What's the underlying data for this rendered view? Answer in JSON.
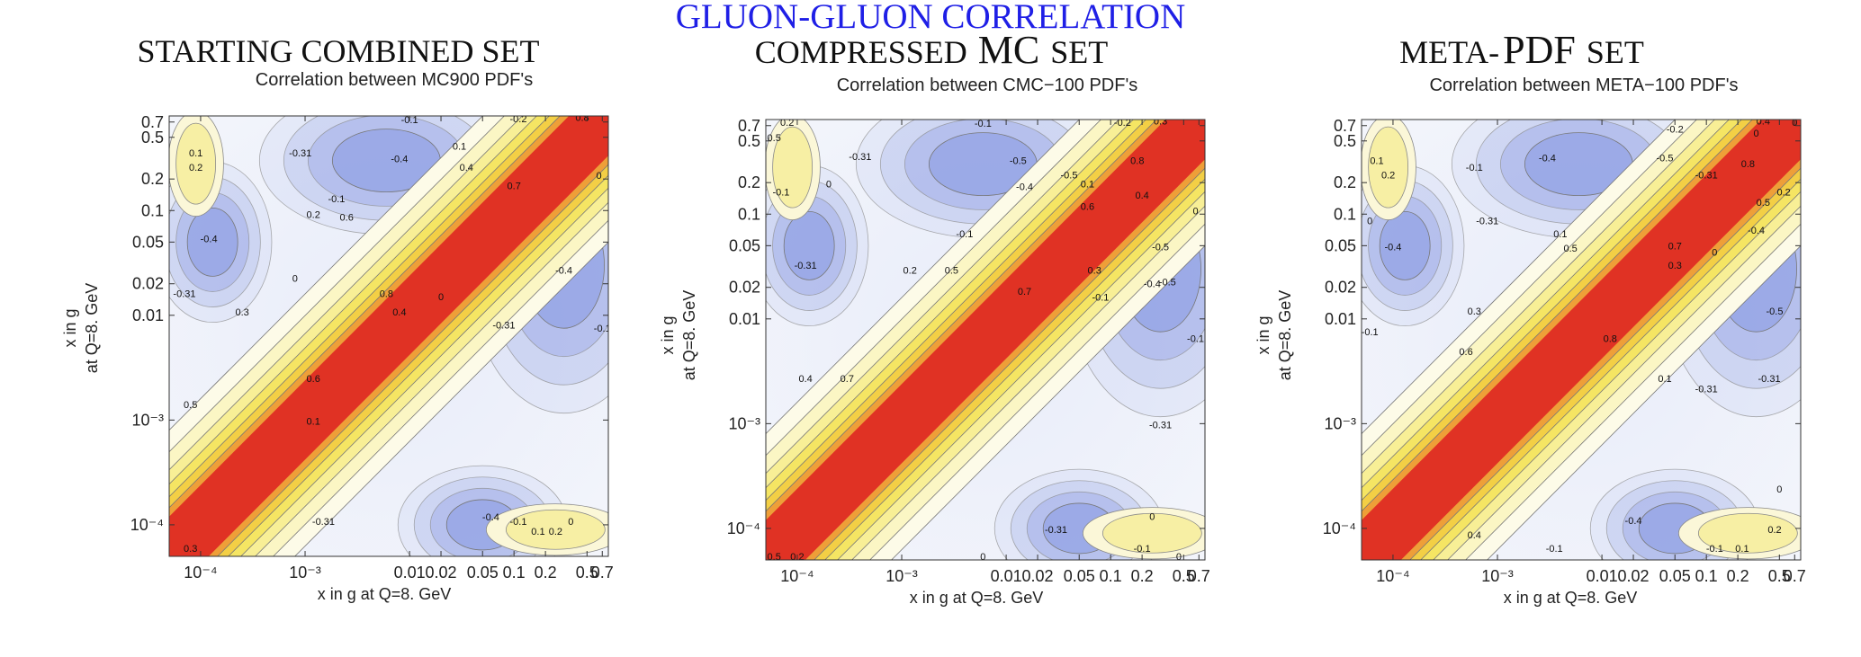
{
  "figure_title": "GLUON-GLUON CORRELATION",
  "chart_data": [
    {
      "type": "heatmap",
      "set_title": "STARTING COMBINED SET",
      "title": "Correlation between MC900 PDF's",
      "xlabel": "x in g at Q=8. GeV",
      "ylabel_line1": "x in g",
      "ylabel_line2": "at Q=8. GeV",
      "x_ticks": [
        "10⁻⁴",
        "10⁻³",
        "0.01",
        "0.02",
        "0.05",
        "0.1",
        "0.2",
        "0.5",
        "0.7"
      ],
      "y_ticks": [
        "0.7",
        "0.5",
        "0.2",
        "0.1",
        "0.05",
        "0.02",
        "0.01",
        "10⁻³",
        "10⁻⁴"
      ],
      "axis_range": [
        5e-05,
        0.8
      ],
      "color_scale": {
        "negative": "#7d90e0",
        "zero": "#fbfbf2",
        "positive_low": "#f6ec7a",
        "positive_high": "#e03224"
      },
      "contour_labels": [
        {
          "text": "-0.1",
          "x": 0.01,
          "y": 0.68
        },
        {
          "text": "-0.2",
          "x": 0.11,
          "y": 0.7
        },
        {
          "text": "0.8",
          "x": 0.45,
          "y": 0.72
        },
        {
          "text": "0.1",
          "x": 9e-05,
          "y": 0.33
        },
        {
          "text": "0.2",
          "x": 9e-05,
          "y": 0.24
        },
        {
          "text": "-0.31",
          "x": 0.0009,
          "y": 0.33
        },
        {
          "text": "-0.4",
          "x": 0.008,
          "y": 0.29
        },
        {
          "text": "0.1",
          "x": 0.03,
          "y": 0.38
        },
        {
          "text": "0.4",
          "x": 0.035,
          "y": 0.24
        },
        {
          "text": "0.7",
          "x": 0.1,
          "y": 0.16
        },
        {
          "text": "-0.1",
          "x": 0.002,
          "y": 0.12
        },
        {
          "text": "0.2",
          "x": 0.0012,
          "y": 0.085
        },
        {
          "text": "0.6",
          "x": 0.0025,
          "y": 0.08
        },
        {
          "text": "-0.4",
          "x": 0.00012,
          "y": 0.05
        },
        {
          "text": "0",
          "x": 0.0008,
          "y": 0.021
        },
        {
          "text": "-0.31",
          "x": 7e-05,
          "y": 0.015
        },
        {
          "text": "0.3",
          "x": 0.00025,
          "y": 0.01
        },
        {
          "text": "0.8",
          "x": 0.006,
          "y": 0.015
        },
        {
          "text": "0",
          "x": 0.02,
          "y": 0.014
        },
        {
          "text": "0.4",
          "x": 0.008,
          "y": 0.01
        },
        {
          "text": "-0.4",
          "x": 0.3,
          "y": 0.025
        },
        {
          "text": "-0.31",
          "x": 0.08,
          "y": 0.0075
        },
        {
          "text": "0.6",
          "x": 0.0012,
          "y": 0.0023
        },
        {
          "text": "0.5",
          "x": 8e-05,
          "y": 0.0013
        },
        {
          "text": "0.1",
          "x": 0.0012,
          "y": 0.0009
        },
        {
          "text": "-0.31",
          "x": 0.0015,
          "y": 0.0001
        },
        {
          "text": "-0.4",
          "x": 0.06,
          "y": 0.00011
        },
        {
          "text": "-0.1",
          "x": 0.11,
          "y": 0.0001
        },
        {
          "text": "0.1",
          "x": 0.17,
          "y": 8e-05
        },
        {
          "text": "0.2",
          "x": 0.25,
          "y": 8e-05
        },
        {
          "text": "0",
          "x": 0.35,
          "y": 0.0001
        },
        {
          "text": "0.3",
          "x": 8e-05,
          "y": 5.5e-05
        },
        {
          "text": "0",
          "x": 0.65,
          "y": 0.2
        },
        {
          "text": "-0.1",
          "x": 0.7,
          "y": 0.007
        }
      ]
    },
    {
      "type": "heatmap",
      "set_title_a": "COMPRESSED",
      "set_title_b": "MC",
      "set_title_c": "SET",
      "title": "Correlation between CMC−100 PDF's",
      "xlabel": "x in g at Q=8. GeV",
      "ylabel_line1": "x in g",
      "ylabel_line2": "at Q=8. GeV",
      "x_ticks": [
        "10⁻⁴",
        "10⁻³",
        "0.01",
        "0.02",
        "0.05",
        "0.1",
        "0.2",
        "0.5",
        "0.7"
      ],
      "y_ticks": [
        "0.7",
        "0.5",
        "0.2",
        "0.1",
        "0.05",
        "0.02",
        "0.01",
        "10⁻³",
        "10⁻⁴"
      ],
      "axis_range": [
        5e-05,
        0.8
      ],
      "color_scale": {
        "negative": "#7d90e0",
        "zero": "#fbfbf2",
        "positive_low": "#f6ec7a",
        "positive_high": "#e03224"
      },
      "contour_labels": [
        {
          "text": "0.2",
          "x": 8e-05,
          "y": 0.7
        },
        {
          "text": "-0.1",
          "x": 0.006,
          "y": 0.68
        },
        {
          "text": "-0.2",
          "x": 0.13,
          "y": 0.7
        },
        {
          "text": "0.3",
          "x": 0.3,
          "y": 0.72
        },
        {
          "text": "0.5",
          "x": 6e-05,
          "y": 0.5
        },
        {
          "text": "-0.31",
          "x": 0.0004,
          "y": 0.33
        },
        {
          "text": "-0.5",
          "x": 0.013,
          "y": 0.3
        },
        {
          "text": "-0.5",
          "x": 0.04,
          "y": 0.22
        },
        {
          "text": "0.8",
          "x": 0.18,
          "y": 0.3
        },
        {
          "text": "-0.4",
          "x": 0.015,
          "y": 0.17
        },
        {
          "text": "0.1",
          "x": 0.06,
          "y": 0.18
        },
        {
          "text": "0",
          "x": 0.0002,
          "y": 0.18
        },
        {
          "text": "-0.1",
          "x": 7e-05,
          "y": 0.15
        },
        {
          "text": "0.4",
          "x": 0.2,
          "y": 0.14
        },
        {
          "text": "0.6",
          "x": 0.06,
          "y": 0.11
        },
        {
          "text": "-0.1",
          "x": 0.004,
          "y": 0.06
        },
        {
          "text": "-0.31",
          "x": 0.00012,
          "y": 0.03
        },
        {
          "text": "0.2",
          "x": 0.0012,
          "y": 0.027
        },
        {
          "text": "0.5",
          "x": 0.003,
          "y": 0.027
        },
        {
          "text": "0.3",
          "x": 0.07,
          "y": 0.027
        },
        {
          "text": "-0.5",
          "x": 0.3,
          "y": 0.045
        },
        {
          "text": "-0.4",
          "x": 0.25,
          "y": 0.02
        },
        {
          "text": "-0.5",
          "x": 0.35,
          "y": 0.021
        },
        {
          "text": "0.7",
          "x": 0.015,
          "y": 0.017
        },
        {
          "text": "-0.1",
          "x": 0.08,
          "y": 0.015
        },
        {
          "text": "0.4",
          "x": 0.00012,
          "y": 0.0025
        },
        {
          "text": "0.7",
          "x": 0.0003,
          "y": 0.0025
        },
        {
          "text": "-0.31",
          "x": 0.3,
          "y": 0.0009
        },
        {
          "text": "-0.31",
          "x": 0.03,
          "y": 9e-05
        },
        {
          "text": "0",
          "x": 0.25,
          "y": 0.00012
        },
        {
          "text": "-0.1",
          "x": 0.2,
          "y": 6e-05
        },
        {
          "text": "0.5",
          "x": 6e-05,
          "y": 5e-05
        },
        {
          "text": "0.2",
          "x": 0.0001,
          "y": 5e-05
        },
        {
          "text": "0",
          "x": 0.006,
          "y": 5e-05
        },
        {
          "text": "0",
          "x": 0.45,
          "y": 5e-05
        },
        {
          "text": "0",
          "x": 0.65,
          "y": 0.1
        },
        {
          "text": "-0.1",
          "x": 0.65,
          "y": 0.006
        }
      ]
    },
    {
      "type": "heatmap",
      "set_title_a": "META-",
      "set_title_b": "PDF",
      "set_title_c": "SET",
      "title": "Correlation between META−100 PDF's",
      "xlabel": "x in g at Q=8. GeV",
      "ylabel_line1": "x in g",
      "ylabel_line2": "at Q=8. GeV",
      "x_ticks": [
        "10⁻⁴",
        "10⁻³",
        "0.01",
        "0.02",
        "0.05",
        "0.1",
        "0.2",
        "0.5",
        "0.7"
      ],
      "y_ticks": [
        "0.7",
        "0.5",
        "0.2",
        "0.1",
        "0.05",
        "0.02",
        "0.01",
        "10⁻³",
        "10⁻⁴"
      ],
      "axis_range": [
        5e-05,
        0.8
      ],
      "color_scale": {
        "negative": "#7d90e0",
        "zero": "#fbfbf2",
        "positive_low": "#f6ec7a",
        "positive_high": "#e03224"
      },
      "contour_labels": [
        {
          "text": "-0.2",
          "x": 0.05,
          "y": 0.6
        },
        {
          "text": "0.4",
          "x": 0.35,
          "y": 0.72
        },
        {
          "text": "0",
          "x": 0.3,
          "y": 0.55
        },
        {
          "text": "0.1",
          "x": 7e-05,
          "y": 0.3
        },
        {
          "text": "0.2",
          "x": 9e-05,
          "y": 0.22
        },
        {
          "text": "-0.1",
          "x": 0.0006,
          "y": 0.26
        },
        {
          "text": "-0.4",
          "x": 0.003,
          "y": 0.32
        },
        {
          "text": "-0.5",
          "x": 0.04,
          "y": 0.32
        },
        {
          "text": "-0.31",
          "x": 0.1,
          "y": 0.22
        },
        {
          "text": "0.8",
          "x": 0.25,
          "y": 0.28
        },
        {
          "text": "0.5",
          "x": 0.35,
          "y": 0.12
        },
        {
          "text": "0.2",
          "x": 0.55,
          "y": 0.15
        },
        {
          "text": "-0.31",
          "x": 0.0008,
          "y": 0.08
        },
        {
          "text": "0.1",
          "x": 0.004,
          "y": 0.06
        },
        {
          "text": "0.5",
          "x": 0.005,
          "y": 0.044
        },
        {
          "text": "0",
          "x": 6e-05,
          "y": 0.08
        },
        {
          "text": "-0.4",
          "x": 0.0001,
          "y": 0.045
        },
        {
          "text": "0.7",
          "x": 0.05,
          "y": 0.046
        },
        {
          "text": "0",
          "x": 0.12,
          "y": 0.04
        },
        {
          "text": "0.3",
          "x": 0.05,
          "y": 0.03
        },
        {
          "text": "-0.4",
          "x": 0.3,
          "y": 0.065
        },
        {
          "text": "-0.5",
          "x": 0.45,
          "y": 0.011
        },
        {
          "text": "0.3",
          "x": 0.0006,
          "y": 0.011
        },
        {
          "text": "-0.1",
          "x": 6e-05,
          "y": 0.007
        },
        {
          "text": "0.6",
          "x": 0.0005,
          "y": 0.0045
        },
        {
          "text": "0.8",
          "x": 0.012,
          "y": 0.006
        },
        {
          "text": "0.1",
          "x": 0.04,
          "y": 0.0025
        },
        {
          "text": "-0.31",
          "x": 0.1,
          "y": 0.002
        },
        {
          "text": "-0.31",
          "x": 0.4,
          "y": 0.0025
        },
        {
          "text": "0",
          "x": 0.5,
          "y": 0.00022
        },
        {
          "text": "-0.4",
          "x": 0.02,
          "y": 0.00011
        },
        {
          "text": "0.2",
          "x": 0.45,
          "y": 9e-05
        },
        {
          "text": "0.4",
          "x": 0.0006,
          "y": 8e-05
        },
        {
          "text": "-0.1",
          "x": 0.0035,
          "y": 6e-05
        },
        {
          "text": "-0.1",
          "x": 0.12,
          "y": 6e-05
        },
        {
          "text": "0.1",
          "x": 0.22,
          "y": 6e-05
        },
        {
          "text": "0",
          "x": 0.7,
          "y": 0.7
        }
      ]
    }
  ]
}
